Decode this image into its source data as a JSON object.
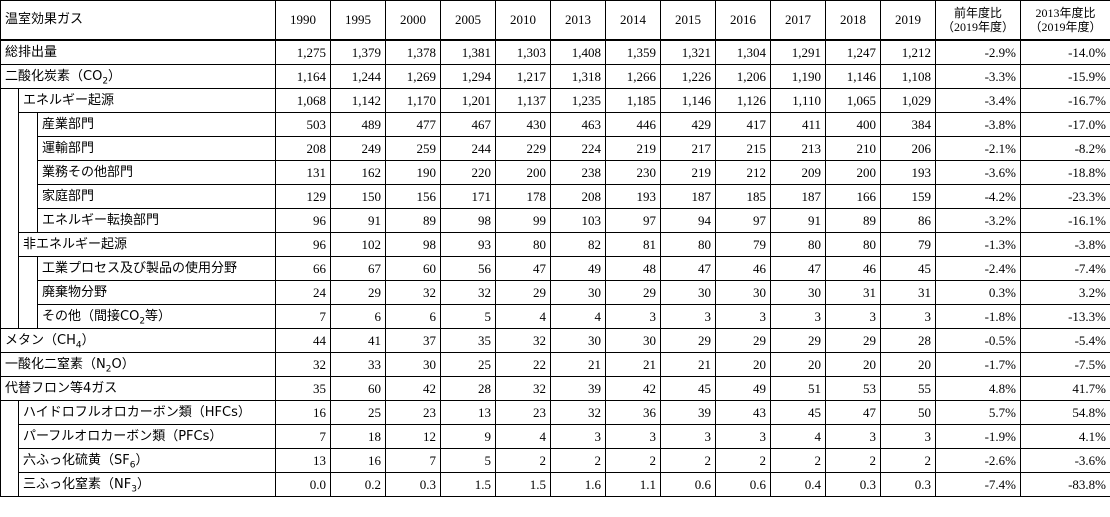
{
  "header": {
    "label": "温室効果ガス",
    "years": [
      "1990",
      "1995",
      "2000",
      "2005",
      "2010",
      "2013",
      "2014",
      "2015",
      "2016",
      "2017",
      "2018",
      "2019"
    ],
    "ratio_prev": [
      "前年度比",
      "（2019年度）"
    ],
    "ratio_2013": [
      "2013年度比",
      "（2019年度）"
    ]
  },
  "rows": [
    {
      "key": "total",
      "level": 0,
      "label": "総排出量",
      "values": [
        "1,275",
        "1,379",
        "1,378",
        "1,381",
        "1,303",
        "1,408",
        "1,359",
        "1,321",
        "1,304",
        "1,291",
        "1,247",
        "1,212"
      ],
      "ratio_prev": "-2.9%",
      "ratio_2013": "-14.0%"
    },
    {
      "key": "co2",
      "level": 0,
      "label_pre": "二酸化炭素（CO",
      "label_sub": "2",
      "label_post": "）",
      "values": [
        "1,164",
        "1,244",
        "1,269",
        "1,294",
        "1,217",
        "1,318",
        "1,266",
        "1,226",
        "1,206",
        "1,190",
        "1,146",
        "1,108"
      ],
      "ratio_prev": "-3.3%",
      "ratio_2013": "-15.9%"
    },
    {
      "key": "energy",
      "level": 1,
      "label": "エネルギー起源",
      "values": [
        "1,068",
        "1,142",
        "1,170",
        "1,201",
        "1,137",
        "1,235",
        "1,185",
        "1,146",
        "1,126",
        "1,110",
        "1,065",
        "1,029"
      ],
      "ratio_prev": "-3.4%",
      "ratio_2013": "-16.7%"
    },
    {
      "key": "industry",
      "level": 2,
      "label": "産業部門",
      "values": [
        "503",
        "489",
        "477",
        "467",
        "430",
        "463",
        "446",
        "429",
        "417",
        "411",
        "400",
        "384"
      ],
      "ratio_prev": "-3.8%",
      "ratio_2013": "-17.0%"
    },
    {
      "key": "transport",
      "level": 2,
      "label": "運輸部門",
      "values": [
        "208",
        "249",
        "259",
        "244",
        "229",
        "224",
        "219",
        "217",
        "215",
        "213",
        "210",
        "206"
      ],
      "ratio_prev": "-2.1%",
      "ratio_2013": "-8.2%"
    },
    {
      "key": "commercial",
      "level": 2,
      "label": "業務その他部門",
      "values": [
        "131",
        "162",
        "190",
        "220",
        "200",
        "238",
        "230",
        "219",
        "212",
        "209",
        "200",
        "193"
      ],
      "ratio_prev": "-3.6%",
      "ratio_2013": "-18.8%"
    },
    {
      "key": "household",
      "level": 2,
      "label": "家庭部門",
      "values": [
        "129",
        "150",
        "156",
        "171",
        "178",
        "208",
        "193",
        "187",
        "185",
        "187",
        "166",
        "159"
      ],
      "ratio_prev": "-4.2%",
      "ratio_2013": "-23.3%"
    },
    {
      "key": "energy_conv",
      "level": 2,
      "label": "エネルギー転換部門",
      "values": [
        "96",
        "91",
        "89",
        "98",
        "99",
        "103",
        "97",
        "94",
        "97",
        "91",
        "89",
        "86"
      ],
      "ratio_prev": "-3.2%",
      "ratio_2013": "-16.1%"
    },
    {
      "key": "non_energy",
      "level": 1,
      "label": "非エネルギー起源",
      "values": [
        "96",
        "102",
        "98",
        "93",
        "80",
        "82",
        "81",
        "80",
        "79",
        "80",
        "80",
        "79"
      ],
      "ratio_prev": "-1.3%",
      "ratio_2013": "-3.8%"
    },
    {
      "key": "ippu",
      "level": 2,
      "label": "工業プロセス及び製品の使用分野",
      "values": [
        "66",
        "67",
        "60",
        "56",
        "47",
        "49",
        "48",
        "47",
        "46",
        "47",
        "46",
        "45"
      ],
      "ratio_prev": "-2.4%",
      "ratio_2013": "-7.4%"
    },
    {
      "key": "waste",
      "level": 2,
      "label": "廃棄物分野",
      "values": [
        "24",
        "29",
        "32",
        "32",
        "29",
        "30",
        "29",
        "30",
        "30",
        "30",
        "31",
        "31"
      ],
      "ratio_prev": "0.3%",
      "ratio_2013": "3.2%"
    },
    {
      "key": "other",
      "level": 2,
      "label_pre": "その他（間接CO",
      "label_sub": "2",
      "label_post": "等）",
      "values": [
        "7",
        "6",
        "6",
        "5",
        "4",
        "4",
        "3",
        "3",
        "3",
        "3",
        "3",
        "3"
      ],
      "ratio_prev": "-1.8%",
      "ratio_2013": "-13.3%"
    },
    {
      "key": "ch4",
      "level": 0,
      "label_pre": "メタン（CH",
      "label_sub": "4",
      "label_post": "）",
      "values": [
        "44",
        "41",
        "37",
        "35",
        "32",
        "30",
        "30",
        "29",
        "29",
        "29",
        "29",
        "28"
      ],
      "ratio_prev": "-0.5%",
      "ratio_2013": "-5.4%"
    },
    {
      "key": "n2o",
      "level": 0,
      "label_pre": "一酸化二窒素（N",
      "label_sub": "2",
      "label_post": "O）",
      "values": [
        "32",
        "33",
        "30",
        "25",
        "22",
        "21",
        "21",
        "21",
        "20",
        "20",
        "20",
        "20"
      ],
      "ratio_prev": "-1.7%",
      "ratio_2013": "-7.5%"
    },
    {
      "key": "fgas",
      "level": 0,
      "label": "代替フロン等4ガス",
      "values": [
        "35",
        "60",
        "42",
        "28",
        "32",
        "39",
        "42",
        "45",
        "49",
        "51",
        "53",
        "55"
      ],
      "ratio_prev": "4.8%",
      "ratio_2013": "41.7%"
    },
    {
      "key": "hfcs",
      "level": 1,
      "label": "ハイドロフルオロカーボン類（HFCs）",
      "values": [
        "16",
        "25",
        "23",
        "13",
        "23",
        "32",
        "36",
        "39",
        "43",
        "45",
        "47",
        "50"
      ],
      "ratio_prev": "5.7%",
      "ratio_2013": "54.8%"
    },
    {
      "key": "pfcs",
      "level": 1,
      "label": "パーフルオロカーボン類（PFCs）",
      "values": [
        "7",
        "18",
        "12",
        "9",
        "4",
        "3",
        "3",
        "3",
        "3",
        "4",
        "3",
        "3"
      ],
      "ratio_prev": "-1.9%",
      "ratio_2013": "4.1%"
    },
    {
      "key": "sf6",
      "level": 1,
      "label_pre": "六ふっ化硫黄（SF",
      "label_sub": "6",
      "label_post": "）",
      "values": [
        "13",
        "16",
        "7",
        "5",
        "2",
        "2",
        "2",
        "2",
        "2",
        "2",
        "2",
        "2"
      ],
      "ratio_prev": "-2.6%",
      "ratio_2013": "-3.6%"
    },
    {
      "key": "nf3",
      "level": 1,
      "label_pre": "三ふっ化窒素（NF",
      "label_sub": "3",
      "label_post": "）",
      "values": [
        "0.0",
        "0.2",
        "0.3",
        "1.5",
        "1.5",
        "1.6",
        "1.1",
        "0.6",
        "0.6",
        "0.4",
        "0.3",
        "0.3"
      ],
      "ratio_prev": "-7.4%",
      "ratio_2013": "-83.8%"
    }
  ]
}
